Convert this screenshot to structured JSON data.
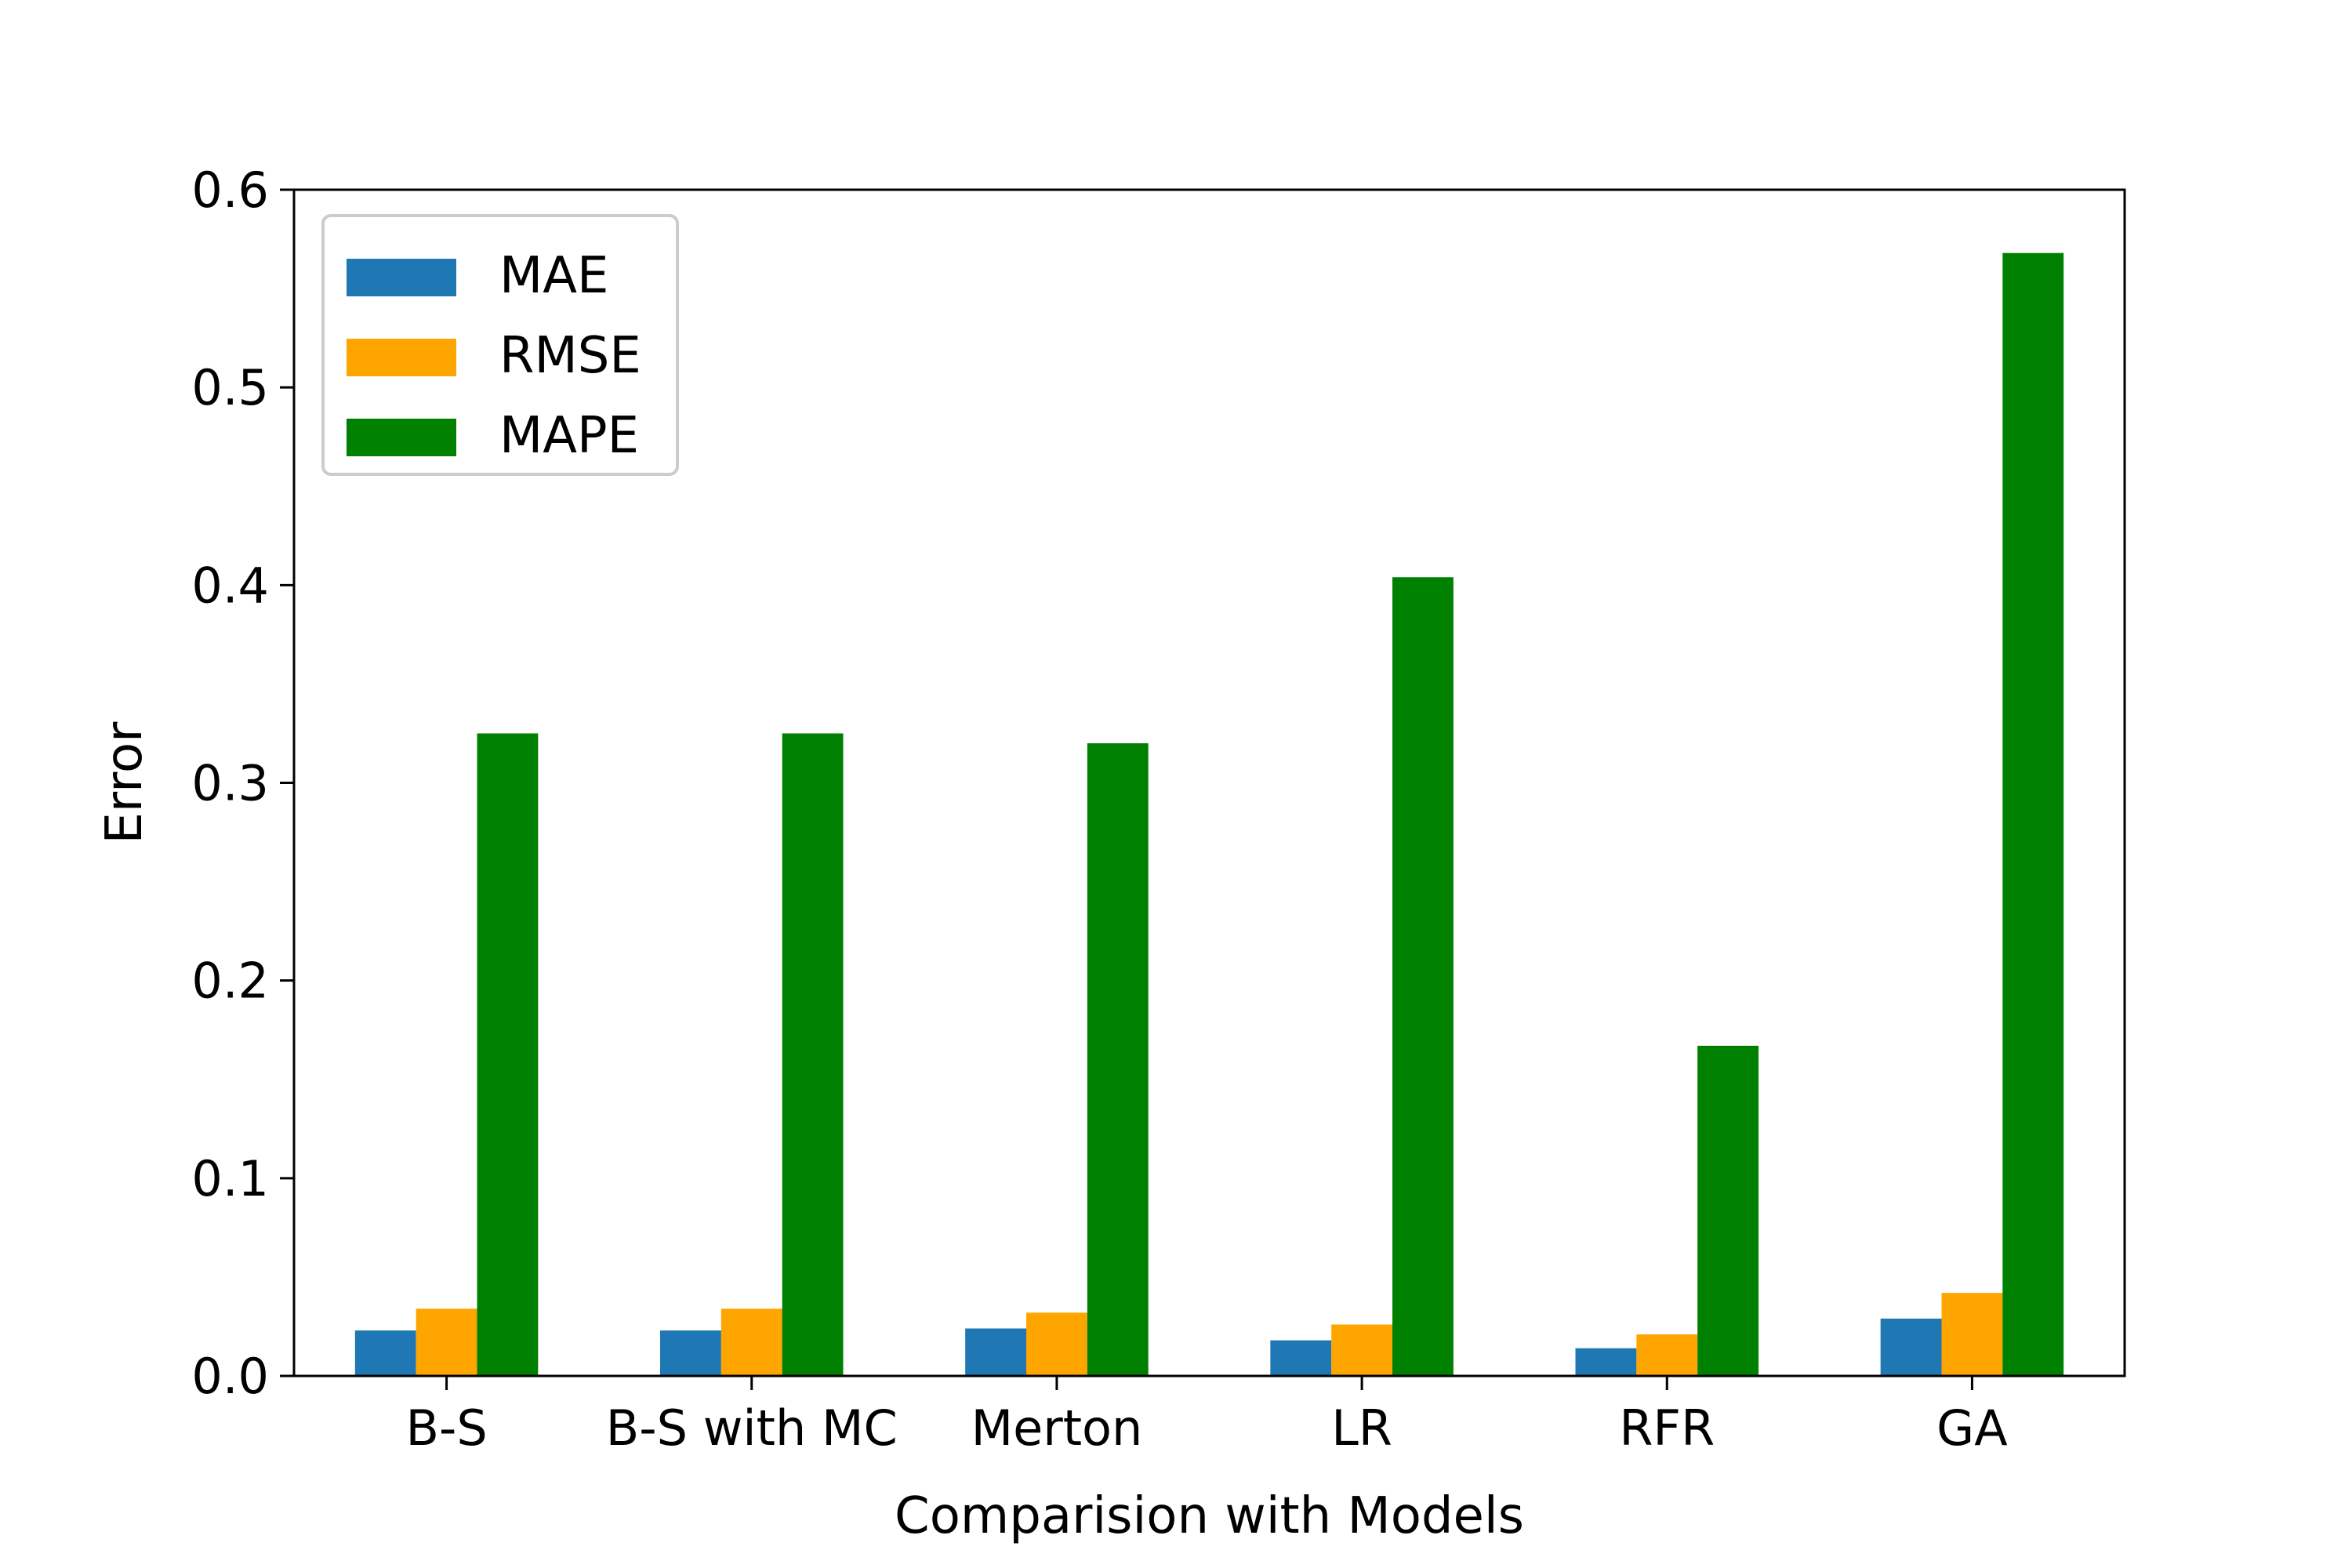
{
  "chart_data": {
    "type": "bar",
    "title": "",
    "xlabel": "Comparision with Models",
    "ylabel": "Error",
    "categories": [
      "B-S",
      "B-S with MC",
      "Merton",
      "LR",
      "RFR",
      "GA"
    ],
    "ylim": [
      0,
      0.6
    ],
    "yticks": [
      "0.0",
      "0.1",
      "0.2",
      "0.3",
      "0.4",
      "0.5",
      "0.6"
    ],
    "grid": false,
    "legend_position": "upper-left",
    "series": [
      {
        "name": "MAE",
        "color": "#1f77b4",
        "values": [
          0.023,
          0.023,
          0.024,
          0.018,
          0.014,
          0.029
        ]
      },
      {
        "name": "RMSE",
        "color": "#ffa500",
        "values": [
          0.034,
          0.034,
          0.032,
          0.026,
          0.021,
          0.042
        ]
      },
      {
        "name": "MAPE",
        "color": "#008000",
        "values": [
          0.325,
          0.325,
          0.32,
          0.404,
          0.167,
          0.568
        ]
      }
    ]
  }
}
